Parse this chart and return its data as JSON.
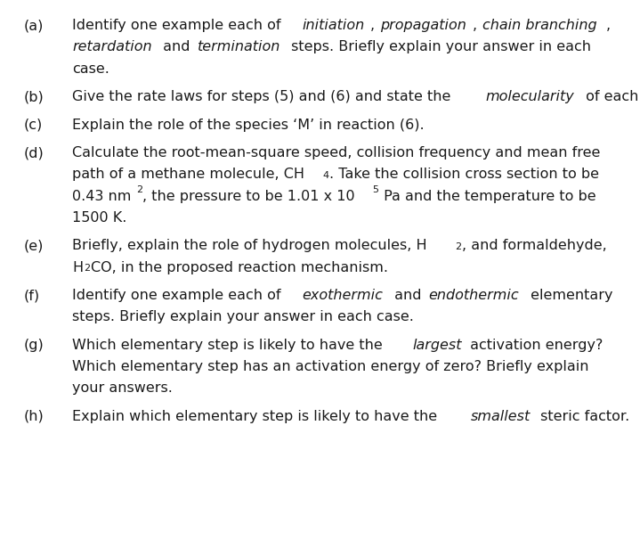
{
  "background_color": "#ffffff",
  "font_family": "DejaVu Sans",
  "font_size": 11.5,
  "items": [
    {
      "label": "(a)",
      "lines": [
        {
          "segments": [
            {
              "text": "Identify one example each of ",
              "style": "normal"
            },
            {
              "text": "initiation",
              "style": "italic"
            },
            {
              "text": ", ",
              "style": "normal"
            },
            {
              "text": "propagation",
              "style": "italic"
            },
            {
              "text": ", ",
              "style": "normal"
            },
            {
              "text": "chain branching",
              "style": "italic"
            },
            {
              "text": ",",
              "style": "normal"
            }
          ]
        },
        {
          "segments": [
            {
              "text": "retardation",
              "style": "italic"
            },
            {
              "text": " and ",
              "style": "normal"
            },
            {
              "text": "termination",
              "style": "italic"
            },
            {
              "text": " steps. Briefly explain your answer in each",
              "style": "normal"
            }
          ]
        },
        {
          "segments": [
            {
              "text": "case.",
              "style": "normal"
            }
          ]
        }
      ]
    },
    {
      "label": "(b)",
      "lines": [
        {
          "segments": [
            {
              "text": "Give the rate laws for steps (5) and (6) and state the ",
              "style": "normal"
            },
            {
              "text": "molecularity",
              "style": "italic"
            },
            {
              "text": " of each.",
              "style": "normal"
            }
          ]
        }
      ]
    },
    {
      "label": "(c)",
      "lines": [
        {
          "segments": [
            {
              "text": "Explain the role of the species ‘M’ in reaction (6).",
              "style": "normal"
            }
          ]
        }
      ]
    },
    {
      "label": "(d)",
      "lines": [
        {
          "segments": [
            {
              "text": "Calculate the root-mean-square speed, collision frequency and mean free",
              "style": "normal"
            }
          ]
        },
        {
          "segments": [
            {
              "text": "path of a methane molecule, CH",
              "style": "normal"
            },
            {
              "text": "4",
              "style": "subscript"
            },
            {
              "text": ". Take the collision cross section to be",
              "style": "normal"
            }
          ]
        },
        {
          "segments": [
            {
              "text": "0.43 nm",
              "style": "normal"
            },
            {
              "text": "2",
              "style": "superscript"
            },
            {
              "text": ", the pressure to be 1.01 x 10",
              "style": "normal"
            },
            {
              "text": "5",
              "style": "superscript"
            },
            {
              "text": " Pa and the temperature to be",
              "style": "normal"
            }
          ]
        },
        {
          "segments": [
            {
              "text": "1500 K.",
              "style": "normal"
            }
          ]
        }
      ]
    },
    {
      "label": "(e)",
      "lines": [
        {
          "segments": [
            {
              "text": "Briefly, explain the role of hydrogen molecules, H",
              "style": "normal"
            },
            {
              "text": "2",
              "style": "subscript"
            },
            {
              "text": ", and formaldehyde,",
              "style": "normal"
            }
          ]
        },
        {
          "segments": [
            {
              "text": "H",
              "style": "normal"
            },
            {
              "text": "2",
              "style": "subscript"
            },
            {
              "text": "CO, in the proposed reaction mechanism.",
              "style": "normal"
            }
          ]
        }
      ]
    },
    {
      "label": "(f)",
      "lines": [
        {
          "segments": [
            {
              "text": "Identify one example each of ",
              "style": "normal"
            },
            {
              "text": "exothermic",
              "style": "italic"
            },
            {
              "text": " and ",
              "style": "normal"
            },
            {
              "text": "endothermic",
              "style": "italic"
            },
            {
              "text": " elementary",
              "style": "normal"
            }
          ]
        },
        {
          "segments": [
            {
              "text": "steps. Briefly explain your answer in each case.",
              "style": "normal"
            }
          ]
        }
      ]
    },
    {
      "label": "(g)",
      "lines": [
        {
          "segments": [
            {
              "text": "Which elementary step is likely to have the ",
              "style": "normal"
            },
            {
              "text": "largest",
              "style": "italic"
            },
            {
              "text": " activation energy?",
              "style": "normal"
            }
          ]
        },
        {
          "segments": [
            {
              "text": "Which elementary step has an activation energy of zero? Briefly explain",
              "style": "normal"
            }
          ]
        },
        {
          "segments": [
            {
              "text": "your answers.",
              "style": "normal"
            }
          ]
        }
      ]
    },
    {
      "label": "(h)",
      "lines": [
        {
          "segments": [
            {
              "text": "Explain which elementary step is likely to have the ",
              "style": "normal"
            },
            {
              "text": "smallest",
              "style": "italic"
            },
            {
              "text": " steric factor.",
              "style": "normal"
            }
          ]
        }
      ]
    }
  ]
}
